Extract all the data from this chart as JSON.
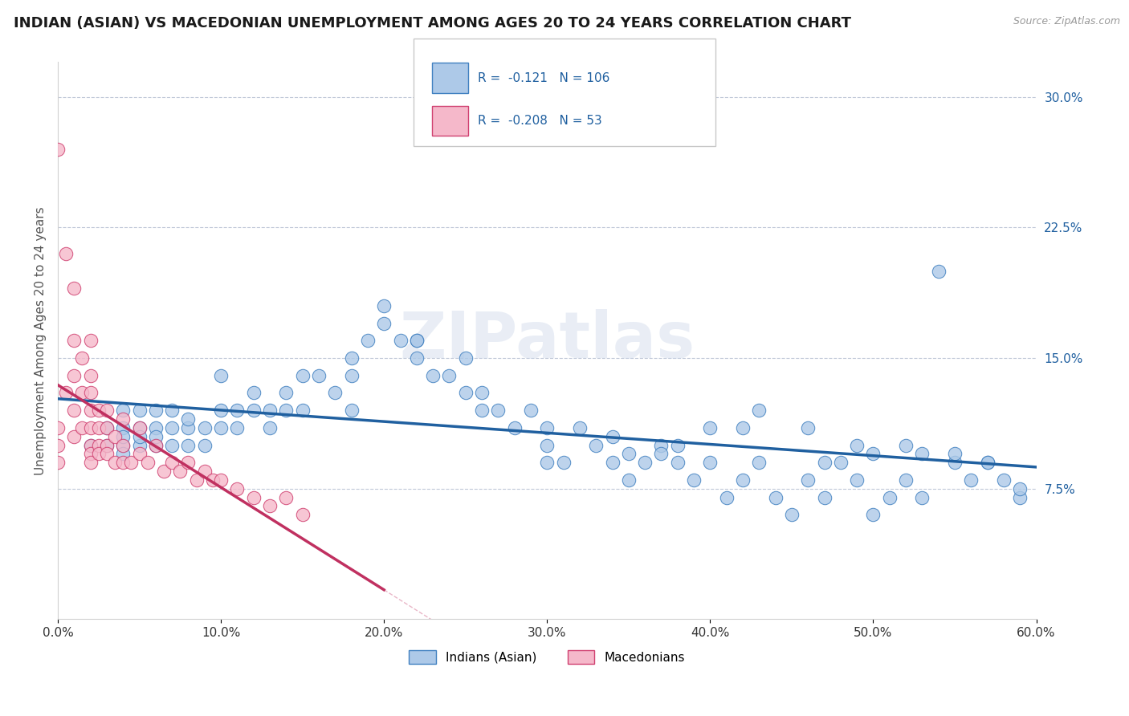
{
  "title": "INDIAN (ASIAN) VS MACEDONIAN UNEMPLOYMENT AMONG AGES 20 TO 24 YEARS CORRELATION CHART",
  "source": "Source: ZipAtlas.com",
  "ylabel": "Unemployment Among Ages 20 to 24 years",
  "xlim": [
    0.0,
    0.6
  ],
  "ylim": [
    0.0,
    0.32
  ],
  "xtick_vals": [
    0.0,
    0.1,
    0.2,
    0.3,
    0.4,
    0.5,
    0.6
  ],
  "xtick_labels": [
    "0.0%",
    "10.0%",
    "20.0%",
    "30.0%",
    "40.0%",
    "50.0%",
    "60.0%"
  ],
  "ytick_vals": [
    0.075,
    0.15,
    0.225,
    0.3
  ],
  "ytick_labels": [
    "7.5%",
    "15.0%",
    "22.5%",
    "30.0%"
  ],
  "blue_r": "-0.121",
  "blue_n": "106",
  "pink_r": "-0.208",
  "pink_n": "53",
  "blue_fill": "#adc9e8",
  "blue_edge": "#4080c0",
  "pink_fill": "#f5b8ca",
  "pink_edge": "#d04070",
  "blue_line_color": "#2060a0",
  "pink_line_color": "#c03060",
  "label_blue": "Indians (Asian)",
  "label_pink": "Macedonians",
  "blue_x": [
    0.02,
    0.03,
    0.03,
    0.04,
    0.04,
    0.04,
    0.04,
    0.04,
    0.05,
    0.05,
    0.05,
    0.05,
    0.06,
    0.06,
    0.06,
    0.06,
    0.07,
    0.07,
    0.07,
    0.08,
    0.08,
    0.08,
    0.09,
    0.09,
    0.1,
    0.1,
    0.1,
    0.11,
    0.11,
    0.12,
    0.12,
    0.13,
    0.13,
    0.14,
    0.14,
    0.15,
    0.15,
    0.16,
    0.17,
    0.18,
    0.18,
    0.19,
    0.2,
    0.2,
    0.21,
    0.22,
    0.22,
    0.23,
    0.24,
    0.25,
    0.25,
    0.26,
    0.27,
    0.28,
    0.29,
    0.3,
    0.3,
    0.31,
    0.32,
    0.33,
    0.34,
    0.35,
    0.36,
    0.37,
    0.38,
    0.39,
    0.4,
    0.41,
    0.42,
    0.43,
    0.44,
    0.45,
    0.46,
    0.47,
    0.48,
    0.49,
    0.5,
    0.51,
    0.52,
    0.53,
    0.54,
    0.55,
    0.56,
    0.57,
    0.58,
    0.59,
    0.35,
    0.38,
    0.42,
    0.47,
    0.5,
    0.52,
    0.55,
    0.57,
    0.59,
    0.4,
    0.43,
    0.46,
    0.49,
    0.53,
    0.18,
    0.22,
    0.26,
    0.3,
    0.34,
    0.37
  ],
  "blue_y": [
    0.1,
    0.11,
    0.1,
    0.11,
    0.1,
    0.12,
    0.105,
    0.095,
    0.11,
    0.12,
    0.1,
    0.105,
    0.1,
    0.11,
    0.12,
    0.105,
    0.11,
    0.12,
    0.1,
    0.11,
    0.1,
    0.115,
    0.11,
    0.1,
    0.11,
    0.12,
    0.14,
    0.12,
    0.11,
    0.12,
    0.13,
    0.12,
    0.11,
    0.13,
    0.12,
    0.12,
    0.14,
    0.14,
    0.13,
    0.12,
    0.14,
    0.16,
    0.17,
    0.18,
    0.16,
    0.16,
    0.15,
    0.14,
    0.14,
    0.15,
    0.13,
    0.12,
    0.12,
    0.11,
    0.12,
    0.09,
    0.1,
    0.09,
    0.11,
    0.1,
    0.09,
    0.08,
    0.09,
    0.1,
    0.09,
    0.08,
    0.09,
    0.07,
    0.08,
    0.09,
    0.07,
    0.06,
    0.08,
    0.07,
    0.09,
    0.08,
    0.06,
    0.07,
    0.08,
    0.07,
    0.2,
    0.09,
    0.08,
    0.09,
    0.08,
    0.07,
    0.095,
    0.1,
    0.11,
    0.09,
    0.095,
    0.1,
    0.095,
    0.09,
    0.075,
    0.11,
    0.12,
    0.11,
    0.1,
    0.095,
    0.15,
    0.16,
    0.13,
    0.11,
    0.105,
    0.095
  ],
  "pink_x": [
    0.0,
    0.0,
    0.0,
    0.0,
    0.005,
    0.005,
    0.01,
    0.01,
    0.01,
    0.01,
    0.01,
    0.015,
    0.015,
    0.015,
    0.02,
    0.02,
    0.02,
    0.02,
    0.02,
    0.02,
    0.02,
    0.02,
    0.025,
    0.025,
    0.025,
    0.025,
    0.03,
    0.03,
    0.03,
    0.03,
    0.035,
    0.035,
    0.04,
    0.04,
    0.04,
    0.045,
    0.05,
    0.05,
    0.055,
    0.06,
    0.065,
    0.07,
    0.075,
    0.08,
    0.085,
    0.09,
    0.095,
    0.1,
    0.11,
    0.12,
    0.13,
    0.14,
    0.15
  ],
  "pink_y": [
    0.27,
    0.11,
    0.1,
    0.09,
    0.21,
    0.13,
    0.19,
    0.16,
    0.14,
    0.12,
    0.105,
    0.15,
    0.13,
    0.11,
    0.16,
    0.14,
    0.13,
    0.12,
    0.11,
    0.1,
    0.095,
    0.09,
    0.12,
    0.11,
    0.1,
    0.095,
    0.12,
    0.11,
    0.1,
    0.095,
    0.105,
    0.09,
    0.115,
    0.1,
    0.09,
    0.09,
    0.11,
    0.095,
    0.09,
    0.1,
    0.085,
    0.09,
    0.085,
    0.09,
    0.08,
    0.085,
    0.08,
    0.08,
    0.075,
    0.07,
    0.065,
    0.07,
    0.06
  ],
  "pink_line_x_end": 0.2,
  "title_fontsize": 13,
  "tick_fontsize": 11
}
